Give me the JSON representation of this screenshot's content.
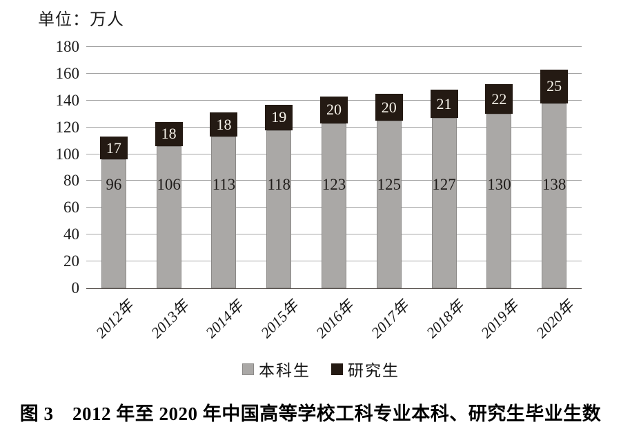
{
  "unit_label": "单位：万人",
  "caption": "图 3　2012 年至 2020 年中国高等学校工科专业本科、研究生毕业生数",
  "colors": {
    "undergrad_bar": "#aaa8a6",
    "undergrad_bar_border": "#8b8987",
    "grad_bar": "#241a13",
    "gridline": "#a3a3a3",
    "axis_line": "#57514d",
    "value_label_dark": "#1f1c1a",
    "value_label_light": "#f7f3ea"
  },
  "chart_data": {
    "type": "bar",
    "stacked": true,
    "title": "图 3　2012 年至 2020 年中国高等学校工科专业本科、研究生毕业生数",
    "unit": "万人",
    "categories": [
      "2012年",
      "2013年",
      "2014年",
      "2015年",
      "2016年",
      "2017年",
      "2018年",
      "2019年",
      "2020年"
    ],
    "series": [
      {
        "name": "本科生",
        "color": "#aaa8a6",
        "values": [
          96,
          106,
          113,
          118,
          123,
          125,
          127,
          130,
          138
        ]
      },
      {
        "name": "研究生",
        "color": "#241a13",
        "values": [
          17,
          18,
          18,
          19,
          20,
          20,
          21,
          22,
          25
        ]
      }
    ],
    "ylim": [
      0,
      180
    ],
    "yticks": [
      0,
      20,
      40,
      60,
      80,
      100,
      120,
      140,
      160,
      180
    ],
    "grid": true,
    "legend_position": "bottom"
  }
}
